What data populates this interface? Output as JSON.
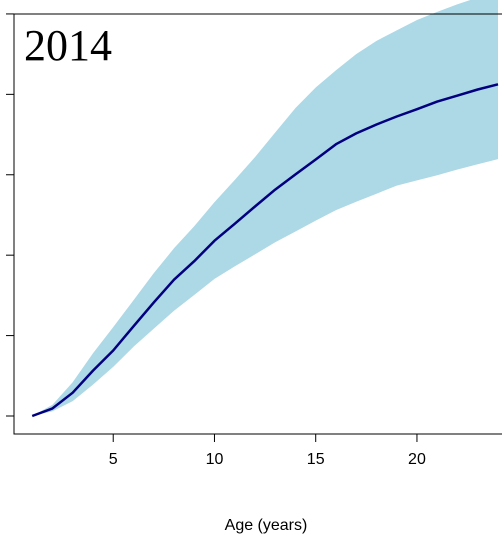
{
  "chart_data": {
    "type": "line",
    "title": "2014",
    "xlabel": "Age (years)",
    "ylabel": "",
    "xlim": [
      0.1,
      24.2
    ],
    "ylim": [
      0,
      1
    ],
    "x_ticks": [
      5,
      10,
      15,
      20
    ],
    "x_tick_labels": [
      "5",
      "10",
      "15",
      "20"
    ],
    "y_tick_count": 6,
    "y_tick_labels_visible": false,
    "grid": false,
    "legend": "none",
    "series": [
      {
        "role": "mean",
        "color": "#00007f",
        "x": [
          1,
          2,
          3,
          4,
          5,
          6,
          7,
          8,
          9,
          10,
          11,
          12,
          13,
          14,
          15,
          16,
          17,
          18,
          19,
          20,
          21,
          22,
          23,
          24
        ],
        "values": [
          0.0,
          0.019,
          0.058,
          0.113,
          0.163,
          0.223,
          0.282,
          0.339,
          0.385,
          0.436,
          0.478,
          0.521,
          0.563,
          0.601,
          0.638,
          0.676,
          0.703,
          0.725,
          0.745,
          0.763,
          0.782,
          0.797,
          0.812,
          0.825
        ]
      }
    ],
    "band": {
      "color": "#add8e6",
      "x": [
        1,
        2,
        3,
        4,
        5,
        6,
        7,
        8,
        9,
        10,
        11,
        12,
        13,
        14,
        15,
        16,
        17,
        18,
        19,
        20,
        21,
        22,
        23,
        24
      ],
      "lower": [
        0.0,
        0.012,
        0.037,
        0.078,
        0.122,
        0.172,
        0.217,
        0.262,
        0.301,
        0.341,
        0.372,
        0.402,
        0.432,
        0.459,
        0.486,
        0.512,
        0.533,
        0.553,
        0.573,
        0.586,
        0.599,
        0.613,
        0.626,
        0.639
      ],
      "upper": [
        0.0,
        0.028,
        0.084,
        0.156,
        0.221,
        0.288,
        0.355,
        0.417,
        0.472,
        0.532,
        0.587,
        0.644,
        0.705,
        0.766,
        0.817,
        0.86,
        0.9,
        0.933,
        0.959,
        0.985,
        1.005,
        1.024,
        1.041,
        1.06
      ]
    }
  }
}
